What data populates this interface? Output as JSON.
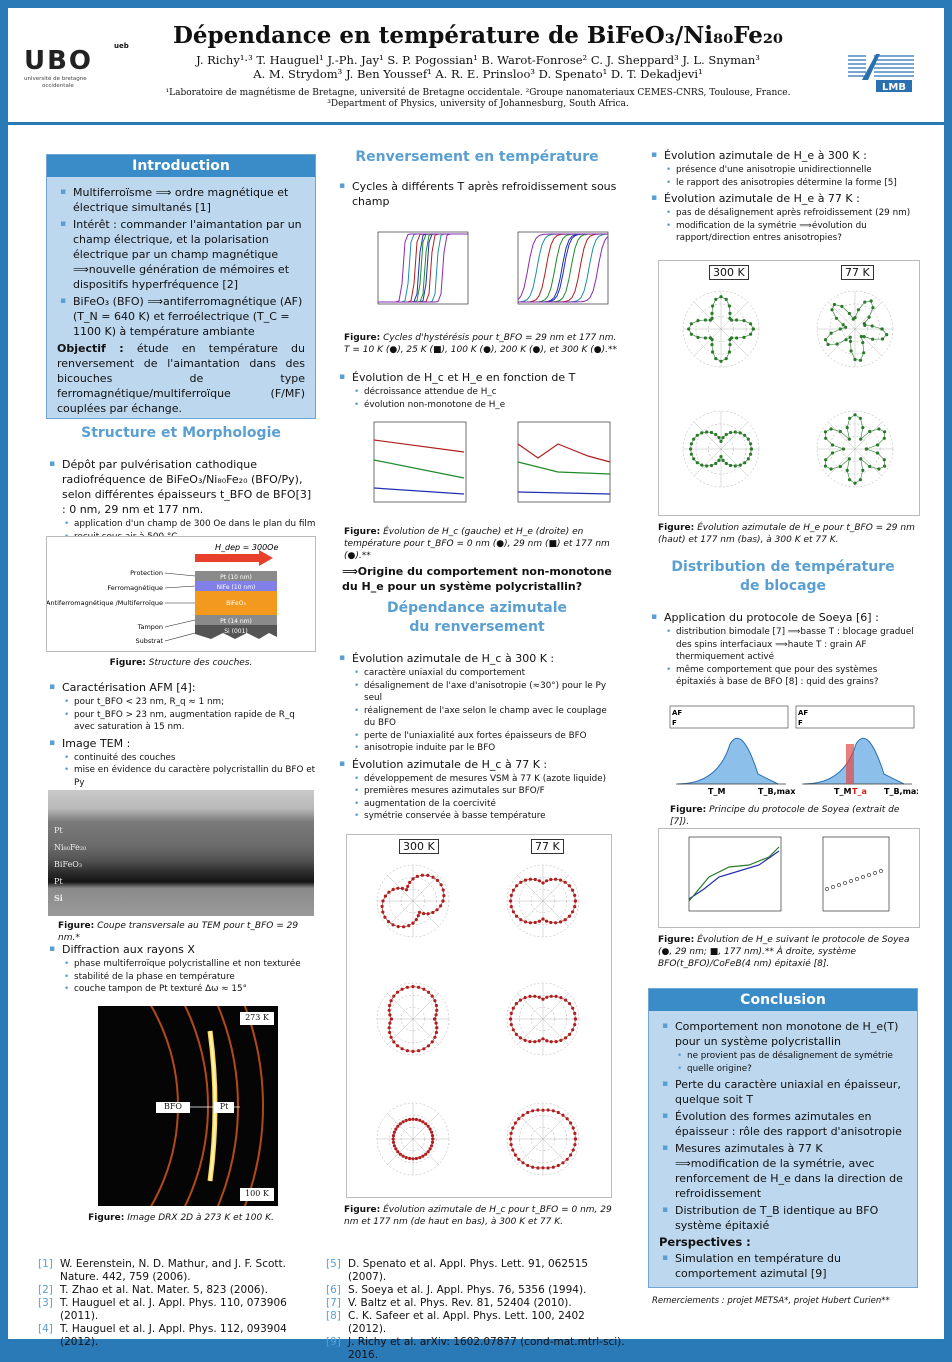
{
  "header": {
    "title": "Dépendance en température de BiFeO₃/Ni₈₀Fe₂₀",
    "authors_line1": "J. Richy¹·³   T. Hauguel¹   J.-Ph. Jay¹   S. P. Pogossian¹   B. Warot-Fonrose²   C. J. Sheppard³   J. L. Snyman³",
    "authors_line2": "A. M. Strydom³   J. Ben Youssef¹   A. R. E. Prinsloo³   D. Spenato¹   D. T. Dekadjevi¹",
    "affiliations": "¹Laboratoire de magnétisme de Bretagne, université de Bretagne occidentale. ²Groupe nanomateriaux CEMES-CNRS, Toulouse, France. ³Department of Physics, university of Johannesburg, South Africa.",
    "logo_ubo": "UBO",
    "logo_ubo_sub1": "université de bretagne",
    "logo_ubo_sub2": "occidentale",
    "logo_ubo_mark": "ueb",
    "logo_lmb": "LMB"
  },
  "intro": {
    "heading": "Introduction",
    "b1": "Multiferroïsme ⟹ ordre magnétique et électrique simultanés [1]",
    "b2": "Intérêt : commander l'aimantation par un champ électrique, et la polarisation électrique par un champ magnétique ⟹nouvelle génération de mémoires et dispositifs hyperfréquence [2]",
    "b3": "BiFeO₃ (BFO) ⟹antiferromagnétique (AF)(T_N = 640 K) et ferroélectrique (T_C = 1100 K) à température ambiante",
    "objectif_label": "Objectif :",
    "objectif": " étude en température du renversement de l'aimantation dans des bicouches de type ferromagnétique/multiferroïque (F/MF) couplées par échange."
  },
  "structure": {
    "heading": "Structure et Morphologie",
    "b1": "Dépôt par pulvérisation cathodique radiofréquence de BiFeO₃/Ni₈₀Fe₂₀ (BFO/Py), selon différentes épaisseurs t_BFO de BFO[3] : 0 nm, 29 nm et 177 nm.",
    "b1_s1": "application d'un champ de 300 Oe dans le plan du film",
    "b1_s2": "recuit sous air à 500 °C",
    "stack_field": "H_dep = 300Oe",
    "stack_layers": [
      "Protection",
      "Ferromagnétique",
      "Antiferromagnétique /Multiferroïque",
      "Tampon",
      "Substrat"
    ],
    "stack_names": [
      "Pt (10 nm)",
      "NiFe (10 nm)",
      "BiFeO₃",
      "Pt (14 nm)",
      "Si (001)"
    ],
    "cap_label": "Figure:",
    "cap": "Structure des couches.",
    "afm": "Caractérisation AFM [4]:",
    "afm_s1": "pour t_BFO < 23 nm, R_q ≈ 1 nm;",
    "afm_s2": "pour t_BFO > 23 nm, augmentation rapide de R_q avec saturation à 15 nm.",
    "tem": "Image TEM :",
    "tem_s1": "continuité des couches",
    "tem_s2": "mise en évidence du caractère polycristallin du BFO et Py",
    "tem_labels": [
      "Pt",
      "Ni₈₀Fe₂₀",
      "BiFeO₃",
      "Pt",
      "Si"
    ],
    "tem_cap_label": "Figure:",
    "tem_cap": "Coupe transversale au TEM pour t_BFO = 29 nm.*",
    "drx": "Diffraction aux rayons X",
    "drx_s1": "phase multiferroïque polycristalline et non texturée",
    "drx_s2": "stabilité de la phase en température",
    "drx_s3": "couche tampon de Pt texturé Δω ≈ 15°",
    "drx_labels": [
      "273 K",
      "BFO",
      "Pt",
      "100 K"
    ],
    "drx_cap_label": "Figure:",
    "drx_cap": "Image DRX 2D à 273 K et 100 K."
  },
  "renversement": {
    "heading": "Renversement en température",
    "b1": "Cycles à différents T après refroidissement sous champ",
    "cap1_label": "Figure:",
    "cap1": "Cycles d'hystérésis pour t_BFO = 29 nm et 177 nm. T = 10 K (●), 25 K (■), 100 K (●), 200 K (●), et 300 K (●).**",
    "b2": "Évolution de H_c et H_e en fonction de T",
    "b2_s1": "décroissance attendue de H_c",
    "b2_s2": "évolution non-monotone de H_e",
    "cap2_label": "Figure:",
    "cap2": "Évolution de H_c (gauche) et H_e (droite) en température pour t_BFO = 0 nm (●), 29 nm (■) et 177 nm (●).**",
    "question": "⟹Origine du comportement non-monotone du H_e pour un système polycristallin?"
  },
  "azimutale": {
    "heading": "Dépendance azimutale du renversement",
    "b1": "Évolution azimutale de H_c à 300 K :",
    "b1_s": [
      "caractère uniaxial du comportement",
      "désalignement de l'axe d'anisotropie (≈30°) pour le Py seul",
      "réalignement de l'axe selon le champ avec le couplage du BFO",
      "perte de l'uniaxialité aux fortes épaisseurs de BFO",
      "anisotropie induite par le BFO"
    ],
    "b2": "Évolution azimutale de H_c à 77 K :",
    "b2_s": [
      "développement de mesures VSM à 77 K (azote liquide)",
      "premières mesures azimutales sur BFO/F",
      "augmentation de la coercivité",
      "symétrie conservée à basse température"
    ],
    "temps": [
      "300 K",
      "77 K"
    ],
    "cap_label": "Figure:",
    "cap": "Évolution azimutale de H_c pour t_BFO = 0 nm, 29 nm et 177 nm (de haut en bas), à 300 K et 77 K."
  },
  "col3": {
    "b1": "Évolution azimutale de H_e à 300 K :",
    "b1_s": [
      "présence d'une anisotropie unidirectionnelle",
      "le rapport des anisotropies détermine la forme [5]"
    ],
    "b2": "Évolution azimutale de H_e à 77 K :",
    "b2_s": [
      "pas de désalignement après refroidissement (29 nm)",
      "modification de la symétrie ⟹évolution du rapport/direction entres anisotropies?"
    ],
    "temps": [
      "300 K",
      "77 K"
    ],
    "cap1_label": "Figure:",
    "cap1": "Évolution azimutale de H_e pour t_BFO = 29 nm (haut) et 177 nm (bas), à 300 K et 77 K.",
    "dist_heading": "Distribution de température de blocage",
    "dist_b1": "Application du protocole de Soeya [6] :",
    "dist_s": [
      "distribution bimodale [7] ⟹basse T : blocage graduel des spins interfaciaux ⟹haute T : grain AF thermiquement activé",
      "même comportement que pour des systèmes épitaxiés à base de BFO [8] : quid des grains?"
    ],
    "soeya_labels": [
      "AF",
      "F",
      "T_M",
      "T_B,max",
      "T_a"
    ],
    "cap2_label": "Figure:",
    "cap2": "Principe du protocole de Soyea (extrait de [7]).",
    "cap3_label": "Figure:",
    "cap3": "Évolution de H_e suivant le protocole de Soyea (●, 29 nm; ■, 177 nm).** À droite, système BFO(t_BFO)/CoFeB(4 nm) épitaxié [8].",
    "conc_heading": "Conclusion",
    "conc_b": [
      "Comportement non monotone de H_e(T) pour un système polycristallin",
      "Perte du caractère uniaxial en épaisseur, quelque soit T",
      "Évolution des formes azimutales en épaisseur : rôle des rapport d'anisotropie",
      "Mesures azimutales à 77 K ⟹modification de la symétrie, avec renforcement de H_e dans la direction de refroidissement",
      "Distribution de T_B identique au BFO système épitaxié"
    ],
    "conc_b1_s": [
      "ne provient pas de désalignement de symétrie",
      "quelle origine?"
    ],
    "persp_label": "Perspectives :",
    "persp": "Simulation en température du comportement azimutal [9]",
    "thanks": "Remerciements : projet METSA*, projet Hubert Curien**"
  },
  "refs_left": [
    {
      "n": "[1]",
      "t": "W. Eerenstein, N. D. Mathur, and J. F. Scott. Nature. 442, 759 (2006)."
    },
    {
      "n": "[2]",
      "t": "T. Zhao et al. Nat. Mater. 5, 823 (2006)."
    },
    {
      "n": "[3]",
      "t": "T. Hauguel et al. J. Appl. Phys. 110, 073906 (2011)."
    },
    {
      "n": "[4]",
      "t": "T. Hauguel et al. J. Appl. Phys. 112, 093904 (2012)."
    }
  ],
  "refs_right": [
    {
      "n": "[5]",
      "t": "D. Spenato et al. Appl. Phys. Lett. 91, 062515 (2007)."
    },
    {
      "n": "[6]",
      "t": "S. Soeya et al. J. Appl. Phys. 76, 5356 (1994)."
    },
    {
      "n": "[7]",
      "t": "V. Baltz et al. Phys. Rev. 81, 52404 (2010)."
    },
    {
      "n": "[8]",
      "t": "C. K. Safeer et al. Appl. Phys. Lett. 100, 2402 (2012)."
    },
    {
      "n": "[9]",
      "t": "J. Richy et al. arXiv: 1602.07877 (cond-mat.mtrl-sci). 2016."
    }
  ],
  "colors": {
    "accent": "#2a7ab8",
    "box": "#bcd7ee",
    "heading": "#5a9fd2"
  }
}
